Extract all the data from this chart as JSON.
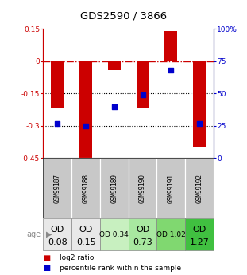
{
  "title": "GDS2590 / 3866",
  "samples": [
    "GSM99187",
    "GSM99188",
    "GSM99189",
    "GSM99190",
    "GSM99191",
    "GSM99192"
  ],
  "log2_ratio": [
    -0.22,
    -0.45,
    -0.04,
    -0.22,
    0.14,
    -0.4
  ],
  "percentile_rank": [
    27,
    25,
    40,
    49,
    68,
    27
  ],
  "age_labels_line1": [
    "OD",
    "OD",
    "OD 0.34",
    "OD",
    "OD 1.02",
    "OD"
  ],
  "age_labels_line2": [
    "0.08",
    "0.15",
    "",
    "0.73",
    "",
    "1.27"
  ],
  "age_bg_colors": [
    "#e8e8e8",
    "#e8e8e8",
    "#c8f0c0",
    "#a8e8a0",
    "#80d870",
    "#40c040"
  ],
  "age_font_size_big": 8,
  "age_font_size_small": 6.5,
  "ylim_left": [
    -0.45,
    0.15
  ],
  "ylim_right": [
    0,
    100
  ],
  "yticks_left": [
    0.15,
    0,
    -0.15,
    -0.3,
    -0.45
  ],
  "yticks_left_labels": [
    "0.15",
    "0",
    "-0.15",
    "-0.3",
    "-0.45"
  ],
  "yticks_right": [
    100,
    75,
    50,
    25,
    0
  ],
  "yticks_right_labels": [
    "100%",
    "75",
    "50",
    "25",
    "0"
  ],
  "bar_color": "#cc0000",
  "dot_color": "#0000cc",
  "red_hline_color": "#cc0000",
  "black_hline_color": "#000000",
  "sample_bg_color": "#c8c8c8",
  "sample_border_color": "#ffffff",
  "background_color": "#ffffff",
  "bar_width": 0.45
}
